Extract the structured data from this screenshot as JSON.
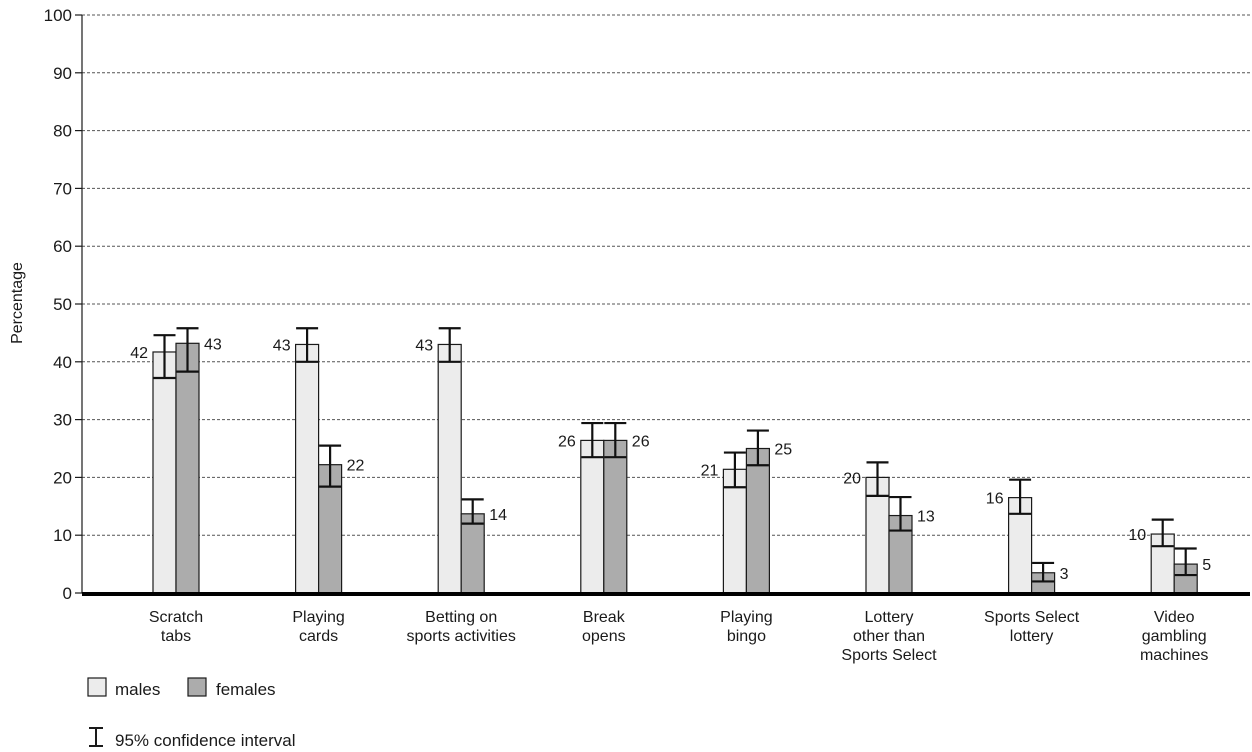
{
  "chart_data": {
    "type": "bar",
    "title": "",
    "xlabel": "",
    "ylabel": "Percentage",
    "ylim": [
      0,
      100
    ],
    "yticks": [
      "0",
      "10",
      "20",
      "30",
      "40",
      "50",
      "60",
      "70",
      "80",
      "90",
      "100"
    ],
    "grid": true,
    "legend_position": "bottom-left",
    "categories": [
      [
        "Scratch",
        "tabs"
      ],
      [
        "Playing",
        "cards"
      ],
      [
        "Betting on",
        "sports activities"
      ],
      [
        "Break",
        "opens"
      ],
      [
        "Playing",
        "bingo"
      ],
      [
        "Lottery",
        "other than",
        "Sports Select"
      ],
      [
        "Sports Select",
        "lottery"
      ],
      [
        "Video",
        "gambling",
        "machines"
      ]
    ],
    "series": [
      {
        "name": "males",
        "color": "#ececec",
        "values": [
          41.7,
          43.0,
          43.0,
          26.4,
          21.4,
          20.0,
          16.5,
          10.2
        ],
        "labels": [
          "42",
          "43",
          "43",
          "26",
          "21",
          "20",
          "16",
          "10"
        ],
        "ci": [
          [
            37.2,
            44.6
          ],
          [
            40.0,
            45.8
          ],
          [
            40.0,
            45.8
          ],
          [
            23.5,
            29.4
          ],
          [
            18.3,
            24.3
          ],
          [
            16.8,
            22.6
          ],
          [
            13.7,
            19.6
          ],
          [
            8.1,
            12.7
          ]
        ]
      },
      {
        "name": "females",
        "color": "#acacac",
        "values": [
          43.2,
          22.2,
          13.7,
          26.4,
          25.0,
          13.4,
          3.5,
          5.0
        ],
        "labels": [
          "43",
          "22",
          "14",
          "26",
          "25",
          "13",
          "3",
          "5"
        ],
        "ci": [
          [
            38.3,
            45.8
          ],
          [
            18.4,
            25.5
          ],
          [
            12.0,
            16.2
          ],
          [
            23.5,
            29.4
          ],
          [
            22.1,
            28.1
          ],
          [
            10.8,
            16.6
          ],
          [
            2.0,
            5.2
          ],
          [
            3.1,
            7.7
          ]
        ]
      }
    ],
    "legend": {
      "males": "males",
      "females": "females",
      "ci": "95% confidence interval"
    }
  }
}
